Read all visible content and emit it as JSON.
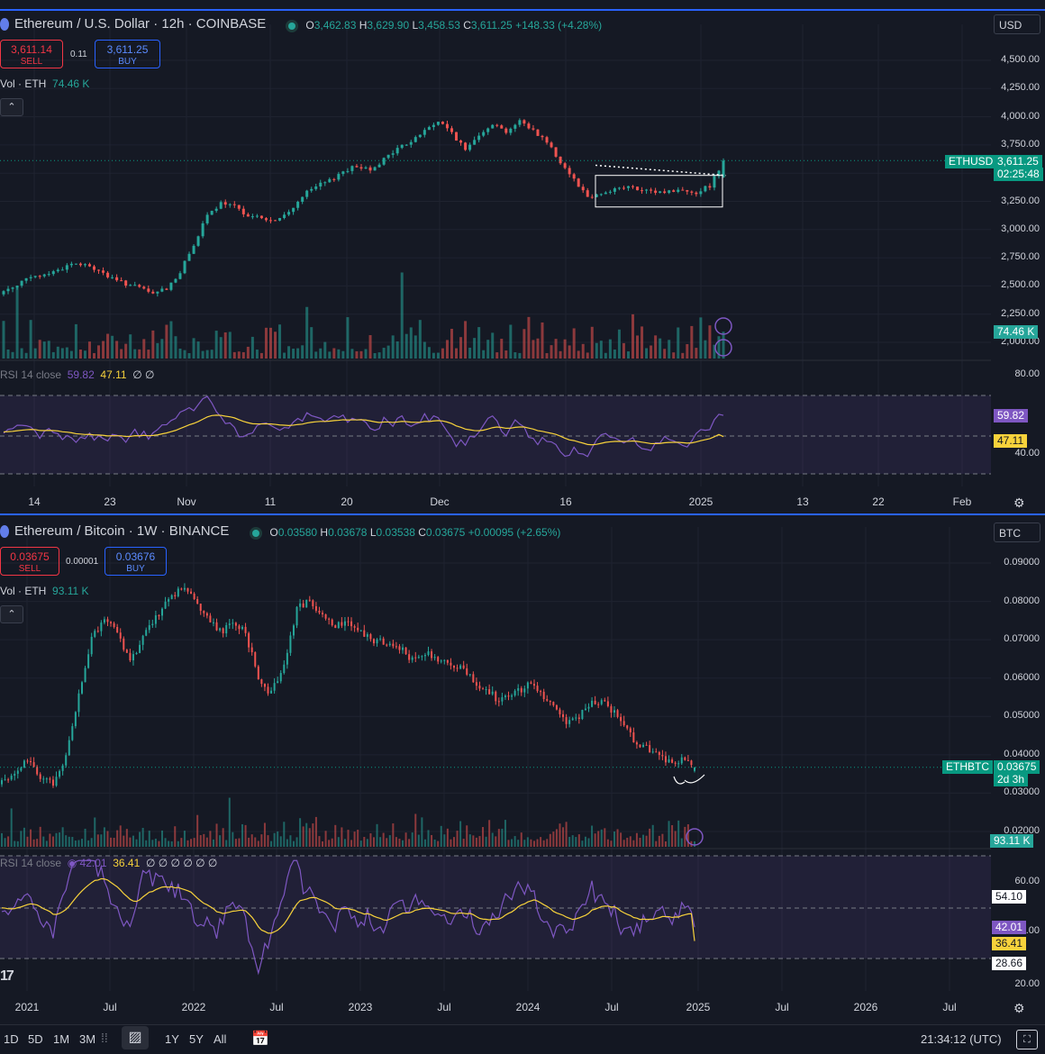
{
  "top": {
    "title": "Ethereum / U.S. Dollar · 12h · COINBASE",
    "ohlc": {
      "o_label": "O",
      "o": "3,462.83",
      "h_label": "H",
      "h": "3,629.90",
      "l_label": "L",
      "l": "3,458.53",
      "c_label": "C",
      "c": "3,611.25",
      "chg": "+148.33 (+4.28%)"
    },
    "sell_price": "3,611.14",
    "sell_label": "SELL",
    "buy_price": "3,611.25",
    "buy_label": "BUY",
    "spread": "0.11",
    "vol_label": "Vol · ETH",
    "vol_value": "74.46 K",
    "currency": "USD",
    "rsi_label": "RSI 14 close",
    "rsi_val": "59.82",
    "rsi_ma": "47.11",
    "rsi_extra": "∅ ∅",
    "price_label_symbol": "ETHUSD",
    "price_label_value": "3,611.25",
    "price_label_time": "02:25:48",
    "vol_badge": "74.46 K",
    "rsi_badge": "59.82",
    "rsi_ma_badge": "47.11",
    "y_labels": [
      "4,500.00",
      "4,250.00",
      "4,000.00",
      "3,750.00",
      "3,500.00",
      "3,250.00",
      "3,000.00",
      "2,750.00",
      "2,500.00",
      "2,250.00",
      "2,000.00"
    ],
    "rsi_y_labels": [
      "80.00",
      "40.00"
    ],
    "x_labels": [
      "14",
      "23",
      "Nov",
      "11",
      "20",
      "Dec",
      "16",
      "2025",
      "13",
      "22",
      "Feb"
    ]
  },
  "bottom": {
    "title": "Ethereum / Bitcoin · 1W · BINANCE",
    "ohlc": {
      "o_label": "O",
      "o": "0.03580",
      "h_label": "H",
      "h": "0.03678",
      "l_label": "L",
      "l": "0.03538",
      "c_label": "C",
      "c": "0.03675",
      "chg": "+0.00095 (+2.65%)"
    },
    "sell_price": "0.03675",
    "sell_label": "SELL",
    "buy_price": "0.03676",
    "buy_label": "BUY",
    "spread": "0.00001",
    "vol_label": "Vol · ETH",
    "vol_value": "93.11 K",
    "currency": "BTC",
    "rsi_label": "RSI 14 close",
    "rsi_val": "42.01",
    "rsi_ma": "36.41",
    "rsi_extra": "∅ ∅ ∅ ∅ ∅ ∅",
    "price_label_symbol": "ETHBTC",
    "price_label_value": "0.03675",
    "price_label_time": "2d 3h",
    "vol_badge": "93.11 K",
    "rsi_badge": "42.01",
    "rsi_ma_badge": "36.41",
    "rsi_upper_badge": "54.10",
    "rsi_lower_badge": "28.66",
    "y_labels": [
      "0.09000",
      "0.08000",
      "0.07000",
      "0.06000",
      "0.05000",
      "0.04000",
      "0.03000",
      "0.02000"
    ],
    "rsi_y_labels": [
      "60.00",
      "40.00",
      "20.00"
    ],
    "x_labels": [
      "2021",
      "Jul",
      "2022",
      "Jul",
      "2023",
      "Jul",
      "2024",
      "Jul",
      "2025",
      "Jul",
      "2026",
      "Jul"
    ]
  },
  "bottom_bar": {
    "ranges": [
      "1D",
      "5D",
      "1M",
      "3M",
      "1Y",
      "5Y",
      "All"
    ],
    "clock": "21:34:12 (UTC)"
  },
  "colors": {
    "up": "#26a69a",
    "down": "#ef5350",
    "rsi": "#7e57c2",
    "rsi_ma": "#f7d23b",
    "bg": "#151924"
  },
  "chart_data": [
    {
      "type": "candlestick",
      "title": "Ethereum / U.S. Dollar · 12h · COINBASE",
      "ylim": [
        2000,
        4500
      ],
      "x_ticks": [
        "14",
        "23",
        "Nov",
        "11",
        "20",
        "Dec",
        "16",
        "2025",
        "13",
        "22",
        "Feb"
      ],
      "close_path": [
        2450,
        2520,
        2570,
        2600,
        2640,
        2700,
        2680,
        2640,
        2560,
        2520,
        2480,
        2430,
        2480,
        2620,
        2870,
        3120,
        3230,
        3200,
        3130,
        3100,
        3070,
        3150,
        3300,
        3380,
        3430,
        3520,
        3560,
        3540,
        3620,
        3720,
        3780,
        3880,
        3960,
        3860,
        3700,
        3850,
        3940,
        3870,
        3960,
        3880,
        3780,
        3600,
        3450,
        3290,
        3320,
        3360,
        3380,
        3340,
        3330,
        3340,
        3350,
        3330,
        3390,
        3611
      ],
      "last": {
        "open": 3462.83,
        "high": 3629.9,
        "low": 3458.53,
        "close": 3611.25
      },
      "volume_last": "74.46 K",
      "rsi": {
        "length": 14,
        "last": 59.82,
        "ma_last": 47.11,
        "levels": [
          70,
          50,
          30
        ]
      }
    },
    {
      "type": "candlestick",
      "title": "Ethereum / Bitcoin · 1W · BINANCE",
      "ylim": [
        0.02,
        0.09
      ],
      "x_ticks": [
        "2021",
        "Jul",
        "2022",
        "Jul",
        "2023",
        "Jul",
        "2024",
        "Jul",
        "2025",
        "Jul",
        "2026",
        "Jul"
      ],
      "close_path": [
        0.033,
        0.035,
        0.039,
        0.034,
        0.032,
        0.04,
        0.056,
        0.07,
        0.076,
        0.072,
        0.064,
        0.07,
        0.076,
        0.08,
        0.084,
        0.081,
        0.076,
        0.072,
        0.074,
        0.072,
        0.06,
        0.056,
        0.064,
        0.078,
        0.08,
        0.076,
        0.074,
        0.074,
        0.072,
        0.07,
        0.069,
        0.068,
        0.065,
        0.067,
        0.065,
        0.063,
        0.062,
        0.058,
        0.056,
        0.054,
        0.056,
        0.058,
        0.056,
        0.052,
        0.048,
        0.05,
        0.054,
        0.053,
        0.05,
        0.045,
        0.042,
        0.04,
        0.038,
        0.039,
        0.0367
      ],
      "last": {
        "open": 0.0358,
        "high": 0.03678,
        "low": 0.03538,
        "close": 0.03675
      },
      "volume_last": "93.11 K",
      "rsi": {
        "length": 14,
        "last": 42.01,
        "ma_last": 36.41,
        "upper": 54.1,
        "lower": 28.66
      }
    }
  ]
}
